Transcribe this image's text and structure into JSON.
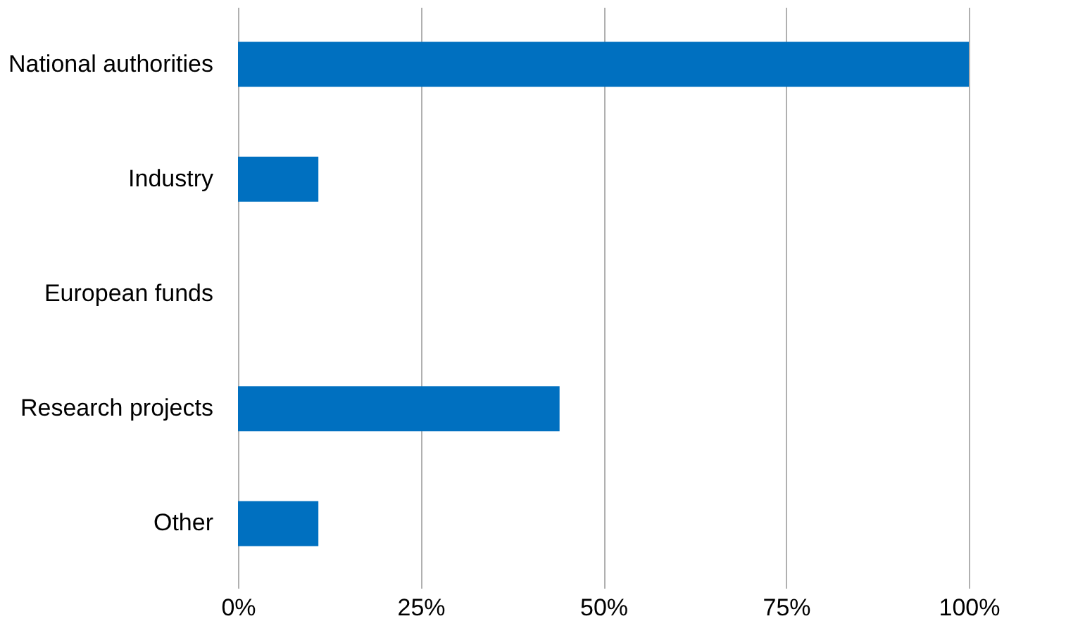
{
  "chart_data": {
    "type": "bar",
    "orientation": "horizontal",
    "categories": [
      "National authorities",
      "Industry",
      "European funds",
      "Research projects",
      "Other"
    ],
    "values": [
      100,
      11,
      0,
      44,
      11
    ],
    "color": "#0070c0",
    "xlim": [
      0,
      100
    ],
    "xticks": [
      {
        "value": 0,
        "label": "0%"
      },
      {
        "value": 25,
        "label": "25%"
      },
      {
        "value": 50,
        "label": "50%"
      },
      {
        "value": 75,
        "label": "75%"
      },
      {
        "value": 100,
        "label": "100%"
      }
    ],
    "grid": "x"
  }
}
